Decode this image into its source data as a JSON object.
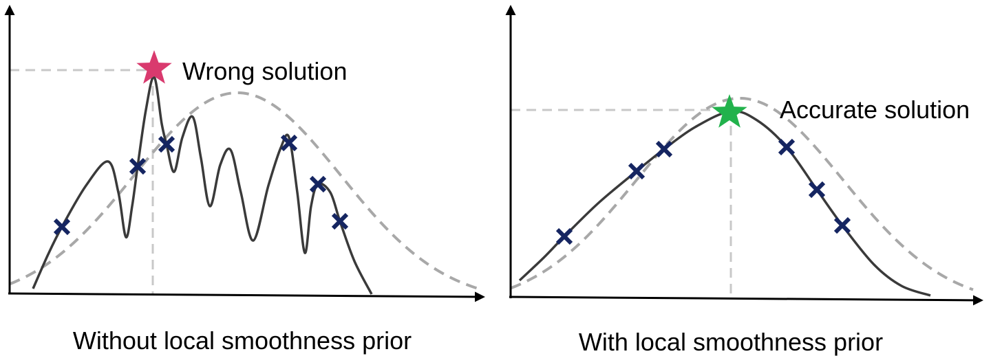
{
  "panels": [
    {
      "annotation": "Wrong solution",
      "caption": "Without local smoothness prior"
    },
    {
      "annotation": "Accurate solution",
      "caption": "With local smoothness prior"
    }
  ]
}
